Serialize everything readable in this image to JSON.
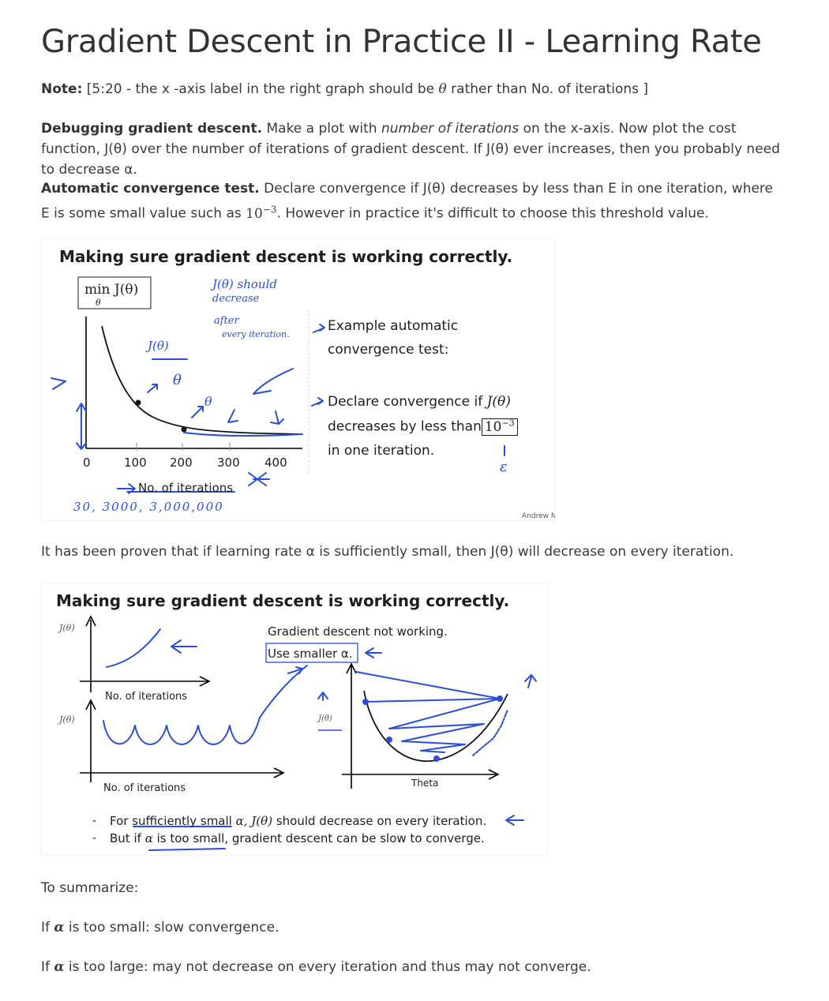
{
  "title": "Gradient Descent in Practice II - Learning Rate",
  "note": {
    "label": "Note:",
    "text_before": "[5:20 - the x -axis label in the right graph should be",
    "theta": "θ",
    "text_after": "rather than No. of iterations ]"
  },
  "debugging": {
    "label": "Debugging gradient descent.",
    "text1": "Make a plot with",
    "em": "number of iterations",
    "text2": "on the x-axis. Now plot the cost function, J(θ) over the number of iterations of gradient descent. If J(θ) ever increases, then you probably need to decrease α."
  },
  "convergence": {
    "label": "Automatic convergence test.",
    "text1": "Declare convergence if J(θ) decreases by less than E in one iteration, where E is some small value such as",
    "base": "10",
    "exp": "−3",
    "text2": ". However in practice it's difficult to choose this threshold value."
  },
  "slide1": {
    "title": "Making sure gradient descent is working correctly.",
    "ylabel_box": "min J(θ)",
    "ylabel_sub": "θ",
    "x_ticks": [
      "0",
      "100",
      "200",
      "300",
      "400"
    ],
    "xlabel": "No. of iterations",
    "example_1": "Example automatic",
    "example_2": "convergence test:",
    "declare_1": "Declare convergence if",
    "declare_math": "J(θ)",
    "declare_2": "decreases by less than",
    "declare_box": "10",
    "declare_exp": "−3",
    "declare_3": "in one iteration.",
    "credit": "Andrew Ng",
    "hand": {
      "j_label": "J(θ)",
      "should_1": "J(θ) should",
      "should_2": "decrease",
      "should_3": "after",
      "should_4": "every iteration.",
      "theta1": "θ",
      "theta2": "θ",
      "epsilon": "ε",
      "bottom": "30,    3000,   3,000,000"
    }
  },
  "proven": "It has been proven that if learning rate α is sufficiently small, then J(θ) will decrease on every iteration.",
  "slide2": {
    "title": "Making sure gradient descent is working correctly.",
    "j_label_top": "J(θ)",
    "j_label_bottom": "J(θ)",
    "j_label_right": "J(θ)",
    "xlabel_top": "No. of iterations",
    "xlabel_bottom": "No. of iterations",
    "not_working": "Gradient descent not working.",
    "use_smaller": "Use smaller α.",
    "theta_label": "Theta",
    "bullet1_pre": "For sufficiently small",
    "bullet1_alpha": "α,",
    "bullet1_math": "J(θ)",
    "bullet1_post": "should decrease on every iteration.",
    "bullet2_pre": "But if",
    "bullet2_alpha": "α",
    "bullet2_post": "is too small, gradient descent can be slow to converge."
  },
  "summary": {
    "heading": "To summarize:",
    "line1_pre": "If",
    "line1_alpha": "α",
    "line1_post": "is too small: slow convergence.",
    "line2_pre": "If",
    "line2_alpha": "α",
    "line2_post": "is too large: may not decrease on every iteration and thus may not converge."
  }
}
